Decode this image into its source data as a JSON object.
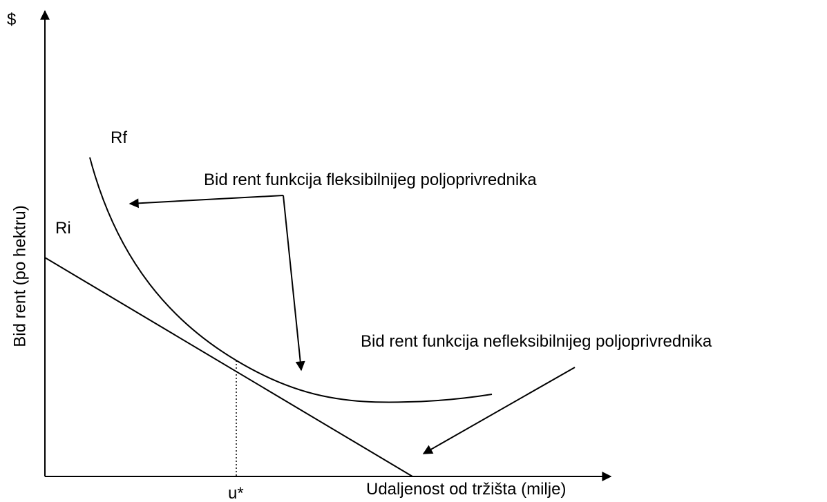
{
  "y_axis": {
    "unit": "$",
    "label": "Bid rent (po hektru)"
  },
  "x_axis": {
    "label": "Udaljenost od tržišta (milje)",
    "point": "u*"
  },
  "curves": [
    {
      "label": "Rf",
      "annotation": "Bid rent funkcija fleksibilnijeg poljoprivrednika"
    },
    {
      "label": "Ri",
      "annotation": "Bid rent funkcija nefleksibilnijeg poljoprivrednika"
    }
  ]
}
